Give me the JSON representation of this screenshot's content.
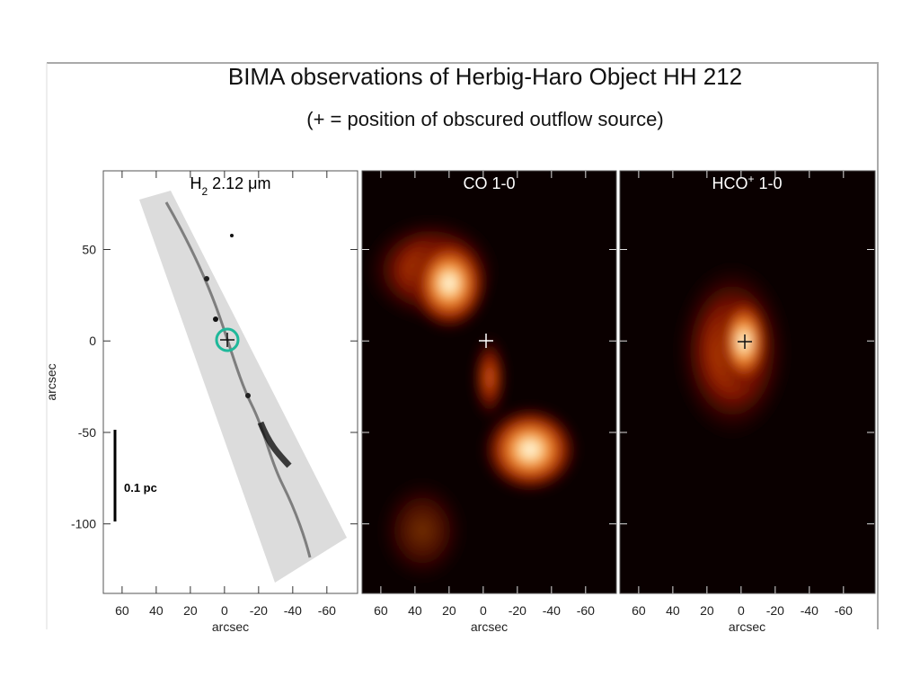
{
  "title": "BIMA observations of Herbig-Haro Object HH 212",
  "subtitle": "(+ = position of obscured outflow source)",
  "axes": {
    "xlim": [
      71,
      -78
    ],
    "ylim": [
      -138,
      93
    ],
    "xticks": [
      60,
      40,
      20,
      0,
      -20,
      -40,
      -60
    ],
    "yticks": [
      50,
      0,
      -50,
      -100
    ],
    "xlabel": "arcsec",
    "ylabel": "arcsec"
  },
  "panels": [
    {
      "label": [
        "H",
        "2",
        " 2.12 μm"
      ]
    },
    {
      "label": [
        "CO 1-0"
      ]
    },
    {
      "label": [
        "HCO",
        "+",
        " 1-0"
      ]
    }
  ],
  "scale_bar": "0.1 pc"
}
